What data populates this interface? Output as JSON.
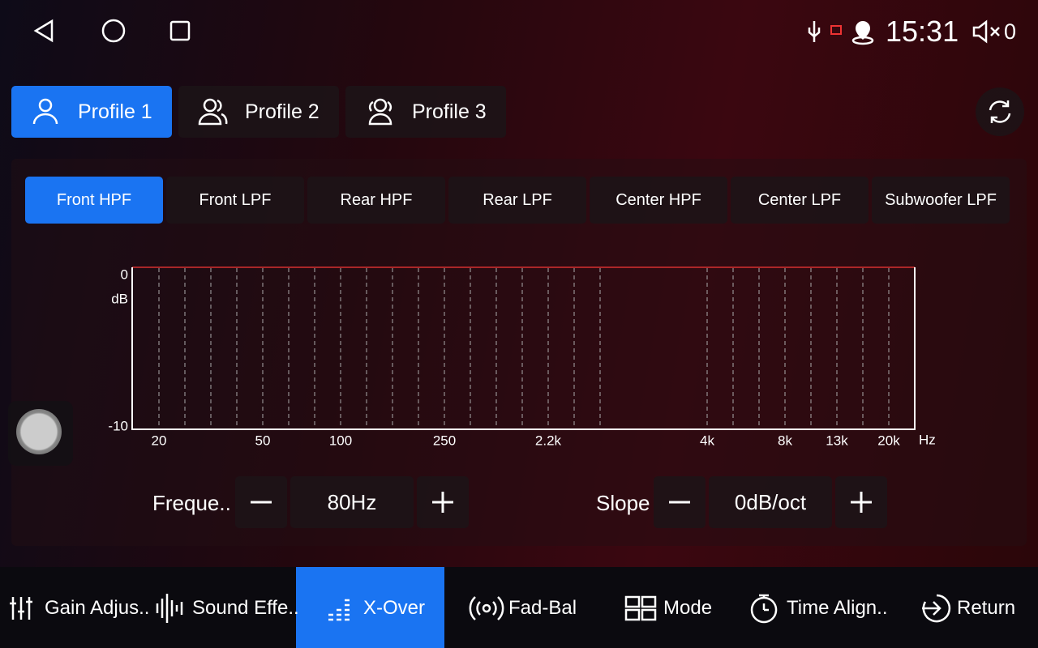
{
  "status_bar": {
    "time": "15:31",
    "volume": "0"
  },
  "profiles": [
    "Profile 1",
    "Profile 2",
    "Profile 3"
  ],
  "filter_tabs": [
    "Front HPF",
    "Front LPF",
    "Rear HPF",
    "Rear LPF",
    "Center HPF",
    "Center LPF",
    "Subwoofer LPF"
  ],
  "graph": {
    "y_labels": [
      "0",
      "dB",
      "-10"
    ],
    "x_labels": [
      "20",
      "50",
      "100",
      "250",
      "2.2k",
      "4k",
      "8k",
      "13k",
      "20k"
    ],
    "x_unit": "Hz"
  },
  "controls": {
    "frequency": {
      "label": "Freque..",
      "value": "80Hz"
    },
    "slope": {
      "label": "Slope",
      "value": "0dB/oct"
    }
  },
  "bottom_nav": [
    "Gain Adjus..",
    "Sound Effe..",
    "X-Over",
    "Fad-Bal",
    "Mode",
    "Time Align..",
    "Return"
  ]
}
